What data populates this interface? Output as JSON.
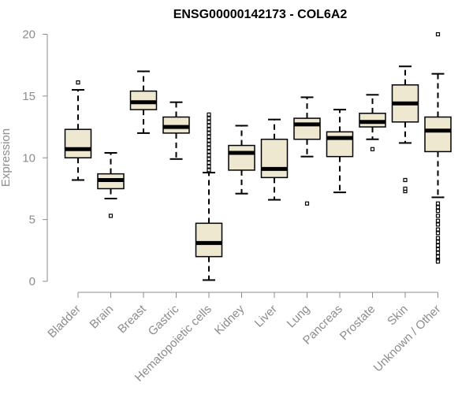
{
  "chart_data": {
    "type": "box",
    "title": "ENSG00000142173 - COL6A2",
    "ylabel": "Expression",
    "xlabel": "",
    "ylim": [
      0,
      21
    ],
    "yticks": [
      0,
      5,
      10,
      15,
      20
    ],
    "box_fill": "#EDE8CF",
    "grid": false,
    "categories": [
      "Bladder",
      "Brain",
      "Breast",
      "Gastric",
      "Hematopoietic cells",
      "Kidney",
      "Liver",
      "Lung",
      "Pancreas",
      "Prostate",
      "Skin",
      "Unknown / Other"
    ],
    "boxes": [
      {
        "name": "Bladder",
        "whisker_low": 8.2,
        "q1": 10.0,
        "median": 10.7,
        "q3": 12.3,
        "whisker_high": 15.5,
        "outliers": [
          16.1
        ]
      },
      {
        "name": "Brain",
        "whisker_low": 6.7,
        "q1": 7.5,
        "median": 8.2,
        "q3": 8.7,
        "whisker_high": 10.4,
        "outliers": [
          5.3
        ]
      },
      {
        "name": "Breast",
        "whisker_low": 12.0,
        "q1": 13.9,
        "median": 14.5,
        "q3": 15.4,
        "whisker_high": 17.0,
        "outliers": []
      },
      {
        "name": "Gastric",
        "whisker_low": 9.9,
        "q1": 12.0,
        "median": 12.5,
        "q3": 13.3,
        "whisker_high": 14.5,
        "outliers": []
      },
      {
        "name": "Hematopoietic cells",
        "whisker_low": 0.1,
        "q1": 2.0,
        "median": 3.1,
        "q3": 4.7,
        "whisker_high": 8.8,
        "outliers": [
          9.0,
          9.3,
          9.6,
          9.9,
          10.2,
          10.5,
          10.8,
          11.1,
          11.4,
          11.7,
          12.0,
          12.3,
          12.6,
          12.9,
          13.2,
          13.5
        ]
      },
      {
        "name": "Kidney",
        "whisker_low": 7.1,
        "q1": 9.0,
        "median": 10.4,
        "q3": 11.0,
        "whisker_high": 12.6,
        "outliers": []
      },
      {
        "name": "Liver",
        "whisker_low": 6.6,
        "q1": 8.4,
        "median": 9.1,
        "q3": 11.5,
        "whisker_high": 13.1,
        "outliers": []
      },
      {
        "name": "Lung",
        "whisker_low": 10.1,
        "q1": 11.5,
        "median": 12.7,
        "q3": 13.2,
        "whisker_high": 14.9,
        "outliers": [
          6.3
        ]
      },
      {
        "name": "Pancreas",
        "whisker_low": 7.2,
        "q1": 10.1,
        "median": 11.6,
        "q3": 12.1,
        "whisker_high": 13.9,
        "outliers": []
      },
      {
        "name": "Prostate",
        "whisker_low": 11.5,
        "q1": 12.5,
        "median": 12.9,
        "q3": 13.6,
        "whisker_high": 15.1,
        "outliers": [
          10.7
        ]
      },
      {
        "name": "Skin",
        "whisker_low": 11.2,
        "q1": 12.9,
        "median": 14.4,
        "q3": 15.9,
        "whisker_high": 17.4,
        "outliers": [
          7.3,
          7.5,
          8.2
        ]
      },
      {
        "name": "Unknown / Other",
        "whisker_low": 6.8,
        "q1": 10.5,
        "median": 12.2,
        "q3": 13.3,
        "whisker_high": 16.8,
        "outliers": [
          20.0,
          6.3,
          6.0,
          5.7,
          5.3,
          4.9,
          4.6,
          4.2,
          3.9,
          3.5,
          3.2,
          2.9,
          2.6,
          2.3,
          2.0,
          1.7,
          1.6
        ]
      }
    ]
  }
}
